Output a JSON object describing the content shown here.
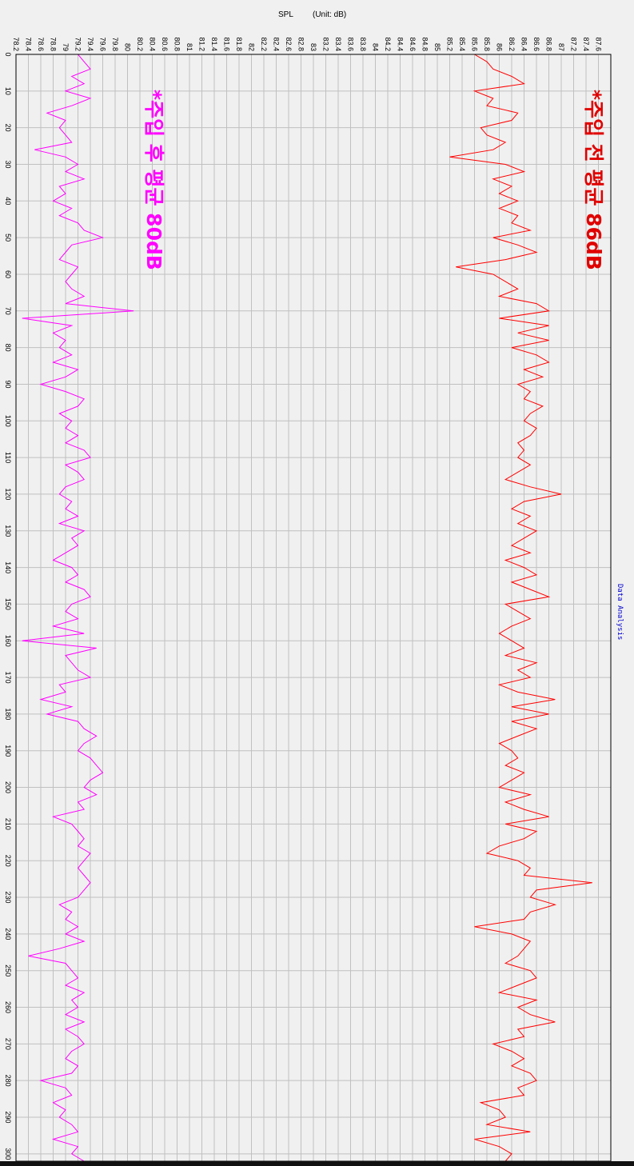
{
  "header": {
    "title": "SPL",
    "unit": "(Unit:  dB)"
  },
  "side_label": "Data Analysis",
  "annotations": {
    "before": {
      "text": "*주입 전 평균 86dB",
      "color": "#e00000"
    },
    "after": {
      "text": "*주입 후 평균 80dB",
      "color": "#ff00ff"
    }
  },
  "chart_data": {
    "type": "line",
    "title": "SPL",
    "ylabel": "(Unit:  dB)",
    "orientation": "rotated 90 degrees: time axis runs downward, SPL axis runs horizontally",
    "xlim": [
      0,
      302
    ],
    "ylim": [
      78.2,
      87.8
    ],
    "x_ticks": [
      0,
      10,
      20,
      30,
      40,
      50,
      60,
      70,
      80,
      90,
      100,
      110,
      120,
      130,
      140,
      150,
      160,
      170,
      180,
      190,
      200,
      210,
      220,
      230,
      240,
      250,
      260,
      270,
      280,
      290,
      300
    ],
    "y_ticks": [
      78.2,
      78.4,
      78.6,
      78.8,
      79,
      79.2,
      79.4,
      79.6,
      79.8,
      80,
      80.2,
      80.4,
      80.6,
      80.8,
      81,
      81.2,
      81.4,
      81.6,
      81.8,
      82,
      82.2,
      82.4,
      82.6,
      82.8,
      83,
      83.2,
      83.4,
      83.6,
      83.8,
      84,
      84.2,
      84.4,
      84.6,
      84.8,
      85,
      85.2,
      85.4,
      85.6,
      85.8,
      86,
      86.2,
      86.4,
      86.6,
      86.8,
      87,
      87.2,
      87.4,
      87.6
    ],
    "y_tick_labels": [
      "78.2",
      "78.4",
      "78.6",
      "78.8",
      "79",
      "79.2",
      "79.4",
      "79.6",
      "79.8",
      "80",
      "80.2",
      "80.4",
      "80.6",
      "80.8",
      "81",
      "81.2",
      "81.4",
      "81.6",
      "81.8",
      "82",
      "82.2",
      "82.4",
      "82.6",
      "82.8",
      "83",
      "83.2",
      "83.4",
      "83.6",
      "83.8",
      "84",
      "84.2",
      "84.4",
      "84.6",
      "84.8",
      "85",
      "85.2",
      "85.4",
      "85.6",
      "85.8",
      "86",
      "86.2",
      "86.4",
      "86.6",
      "86.8",
      "87",
      "87.2",
      "87.4",
      "87.6"
    ],
    "grid": true,
    "series": [
      {
        "color": "#ff0000",
        "x": [
          0,
          2,
          4,
          6,
          8,
          10,
          12,
          14,
          16,
          18,
          20,
          22,
          24,
          26,
          28,
          30,
          32,
          34,
          36,
          38,
          40,
          42,
          44,
          46,
          48,
          50,
          52,
          54,
          56,
          58,
          60,
          62,
          64,
          66,
          68,
          70,
          72,
          74,
          76,
          78,
          80,
          82,
          84,
          86,
          88,
          90,
          92,
          94,
          96,
          98,
          100,
          102,
          104,
          106,
          108,
          110,
          112,
          114,
          116,
          118,
          120,
          122,
          124,
          126,
          128,
          130,
          132,
          134,
          136,
          138,
          140,
          142,
          144,
          146,
          148,
          150,
          152,
          154,
          156,
          158,
          160,
          162,
          164,
          166,
          168,
          170,
          172,
          174,
          176,
          178,
          180,
          182,
          184,
          186,
          188,
          190,
          192,
          194,
          196,
          198,
          200,
          202,
          204,
          206,
          208,
          210,
          212,
          214,
          216,
          218,
          220,
          222,
          224,
          226,
          228,
          230,
          232,
          234,
          236,
          238,
          240,
          242,
          244,
          246,
          248,
          250,
          252,
          254,
          256,
          258,
          260,
          262,
          264,
          266,
          268,
          270,
          272,
          274,
          276,
          278,
          280,
          282,
          284,
          286,
          288,
          290,
          292,
          294,
          296,
          298,
          300,
          302
        ],
        "values": [
          85.6,
          85.8,
          85.9,
          86.2,
          86.4,
          85.6,
          85.9,
          85.8,
          86.3,
          86.2,
          85.7,
          85.8,
          86.1,
          85.9,
          85.2,
          86.1,
          86.4,
          85.9,
          86.2,
          86.0,
          86.3,
          86.0,
          86.3,
          86.2,
          86.5,
          85.9,
          86.3,
          86.6,
          86.1,
          85.3,
          85.9,
          86.1,
          86.3,
          86.0,
          86.6,
          86.8,
          86.0,
          86.8,
          86.3,
          86.8,
          86.2,
          86.6,
          86.8,
          86.4,
          86.7,
          86.3,
          86.5,
          86.4,
          86.7,
          86.5,
          86.4,
          86.6,
          86.5,
          86.3,
          86.4,
          86.3,
          86.5,
          86.3,
          86.1,
          86.5,
          87.0,
          86.4,
          86.2,
          86.5,
          86.3,
          86.6,
          86.4,
          86.2,
          86.5,
          86.1,
          86.4,
          86.6,
          86.2,
          86.5,
          86.8,
          86.1,
          86.3,
          86.5,
          86.2,
          86.0,
          86.2,
          86.4,
          86.1,
          86.6,
          86.3,
          86.5,
          86.0,
          86.3,
          86.9,
          86.2,
          86.8,
          86.2,
          86.6,
          86.3,
          86.0,
          86.2,
          86.3,
          86.1,
          86.4,
          86.2,
          86.0,
          86.5,
          86.1,
          86.4,
          86.8,
          86.1,
          86.6,
          86.4,
          86.0,
          85.8,
          86.3,
          86.5,
          86.4,
          87.5,
          86.6,
          86.5,
          86.9,
          86.5,
          86.4,
          85.6,
          86.2,
          86.5,
          86.4,
          86.3,
          86.1,
          86.5,
          86.6,
          86.3,
          86.0,
          86.6,
          86.3,
          86.5,
          86.9,
          86.3,
          86.4,
          85.9,
          86.2,
          86.4,
          86.2,
          86.5,
          86.6,
          86.3,
          86.4,
          85.7,
          86.0,
          86.1,
          85.8,
          86.5,
          85.6,
          86.0,
          86.2,
          86.1
        ],
        "average_label": "*주입 전 평균 86dB"
      },
      {
        "color": "#ff00ff",
        "x": [
          0,
          2,
          4,
          6,
          8,
          10,
          12,
          14,
          16,
          18,
          20,
          22,
          24,
          26,
          28,
          30,
          32,
          34,
          36,
          38,
          40,
          42,
          44,
          46,
          48,
          50,
          52,
          54,
          56,
          58,
          60,
          62,
          64,
          66,
          68,
          70,
          72,
          74,
          76,
          78,
          80,
          82,
          84,
          86,
          88,
          90,
          92,
          94,
          96,
          98,
          100,
          102,
          104,
          106,
          108,
          110,
          112,
          114,
          116,
          118,
          120,
          122,
          124,
          126,
          128,
          130,
          132,
          134,
          136,
          138,
          140,
          142,
          144,
          146,
          148,
          150,
          152,
          154,
          156,
          158,
          160,
          162,
          164,
          166,
          168,
          170,
          172,
          174,
          176,
          178,
          180,
          182,
          184,
          186,
          188,
          190,
          192,
          194,
          196,
          198,
          200,
          202,
          204,
          206,
          208,
          210,
          212,
          214,
          216,
          218,
          220,
          222,
          224,
          226,
          228,
          230,
          232,
          234,
          236,
          238,
          240,
          242,
          244,
          246,
          248,
          250,
          252,
          254,
          256,
          258,
          260,
          262,
          264,
          266,
          268,
          270,
          272,
          274,
          276,
          278,
          280,
          282,
          284,
          286,
          288,
          290,
          292,
          294,
          296,
          298,
          300,
          302
        ],
        "values": [
          79.2,
          79.3,
          79.4,
          79.1,
          79.3,
          79.0,
          79.4,
          79.1,
          78.7,
          79.0,
          78.9,
          79.0,
          79.1,
          78.5,
          79.0,
          79.2,
          79.0,
          79.3,
          78.9,
          79.0,
          78.8,
          79.1,
          78.9,
          79.2,
          79.3,
          79.6,
          79.1,
          79.0,
          78.9,
          79.2,
          79.1,
          79.0,
          79.1,
          79.3,
          79.0,
          80.1,
          78.3,
          79.1,
          78.8,
          79.0,
          78.9,
          79.1,
          78.8,
          79.2,
          79.0,
          78.6,
          79.0,
          79.3,
          79.2,
          78.9,
          79.1,
          79.0,
          79.2,
          79.0,
          79.3,
          79.4,
          79.0,
          79.2,
          79.3,
          79.0,
          78.9,
          79.1,
          79.0,
          79.2,
          78.9,
          79.3,
          79.1,
          79.2,
          79.0,
          78.8,
          79.1,
          79.2,
          79.0,
          79.3,
          79.4,
          79.1,
          79.0,
          79.2,
          78.8,
          79.3,
          78.3,
          79.5,
          79.0,
          79.1,
          79.2,
          79.4,
          78.9,
          79.0,
          78.6,
          79.1,
          78.7,
          79.2,
          79.3,
          79.5,
          79.3,
          79.2,
          79.4,
          79.5,
          79.6,
          79.4,
          79.3,
          79.5,
          79.2,
          79.3,
          78.8,
          79.1,
          79.2,
          79.3,
          79.2,
          79.4,
          79.3,
          79.2,
          79.3,
          79.4,
          79.3,
          79.2,
          78.9,
          79.1,
          79.0,
          79.2,
          79.0,
          79.3,
          78.9,
          78.4,
          79.0,
          79.1,
          79.2,
          79.0,
          79.3,
          79.1,
          79.2,
          79.0,
          79.3,
          79.0,
          79.2,
          79.3,
          79.1,
          79.0,
          79.2,
          79.1,
          78.6,
          79.0,
          79.1,
          78.8,
          79.0,
          78.9,
          79.1,
          79.2,
          78.8,
          79.2,
          79.1,
          79.3
        ],
        "average_label": "*주입 후 평균 80dB"
      }
    ]
  }
}
